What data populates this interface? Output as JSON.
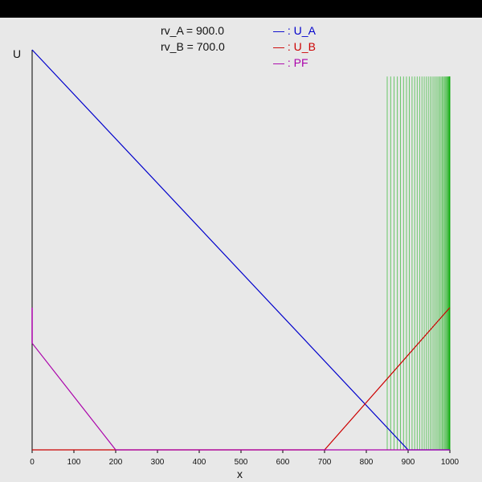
{
  "params": {
    "rv_a": "rv_A = 900.0",
    "rv_b": "rv_B = 700.0"
  },
  "legend": [
    {
      "label": "— : U_A",
      "color": "#0000cc"
    },
    {
      "label": "— : U_B",
      "color": "#cc0000"
    },
    {
      "label": "— : PF",
      "color": "#aa00aa"
    }
  ],
  "colors": {
    "top_bar": "#000000",
    "background": "#e8e8e8",
    "axis": "#000000",
    "green_lines": "#00aa00"
  },
  "chart_data": {
    "type": "line",
    "xlabel": "x",
    "ylabel": "U",
    "xlim": [
      0,
      1000
    ],
    "ylim": [
      0,
      1
    ],
    "x_ticks": [
      0,
      100,
      200,
      300,
      400,
      500,
      600,
      700,
      800,
      900,
      1000
    ],
    "grid": false,
    "series": [
      {
        "name": "U_A",
        "color": "#0000cc",
        "points": [
          [
            0,
            1.0
          ],
          [
            900,
            0.0
          ],
          [
            1000,
            0.0
          ]
        ]
      },
      {
        "name": "U_B",
        "color": "#cc0000",
        "points": [
          [
            0,
            0.0
          ],
          [
            700,
            0.0
          ],
          [
            1000,
            0.3556
          ]
        ]
      },
      {
        "name": "PF",
        "color": "#aa00aa",
        "points": [
          [
            0,
            0.2667
          ],
          [
            200,
            0.0
          ],
          [
            1000,
            0.0
          ]
        ]
      }
    ],
    "pf_vertical_segment": {
      "x": 0,
      "y_from": 0.2667,
      "y_to": 0.3556,
      "color": "#aa00aa"
    },
    "green_vertical_lines": {
      "x_start": 850,
      "x_end": 1000,
      "count": 40,
      "y_top": 0.9333,
      "color": "#00aa00"
    }
  }
}
